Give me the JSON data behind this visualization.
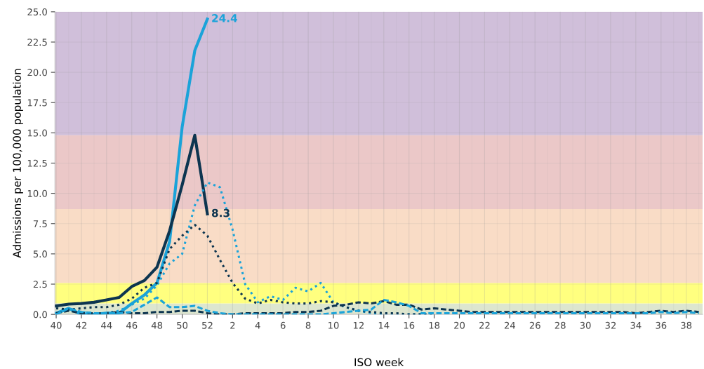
{
  "chart_data": {
    "type": "line",
    "xlabel": "ISO week",
    "ylabel": "Admissions per 100,000 population",
    "categories": [
      "40",
      null,
      "42",
      null,
      "44",
      null,
      "46",
      null,
      "48",
      null,
      "50",
      null,
      "52",
      null,
      "2",
      null,
      "4",
      null,
      "6",
      null,
      "8",
      null,
      "10",
      null,
      "12",
      null,
      "14",
      null,
      "16",
      null,
      "18",
      null,
      "20",
      null,
      "22",
      null,
      "24",
      null,
      "26",
      null,
      "28",
      null,
      "30",
      null,
      "32",
      null,
      "34",
      null,
      "36",
      null,
      "38",
      null
    ],
    "series": [
      {
        "color": "#1ba3d9",
        "line_style": "solid",
        "values": [
          0.1,
          0.5,
          0.0,
          0.0,
          0.1,
          0.1,
          0.9,
          1.6,
          2.6,
          6.0,
          15.5,
          21.8,
          24.4,
          null,
          null,
          null,
          null,
          null,
          null,
          null,
          null,
          null,
          null,
          null,
          null,
          null,
          null,
          null,
          null,
          null,
          null,
          null,
          null,
          null,
          null,
          null,
          null,
          null,
          null,
          null,
          null,
          null,
          null,
          null,
          null,
          null,
          null,
          null,
          null,
          null,
          null,
          null
        ]
      },
      {
        "color": "#0d3550",
        "line_style": "solid",
        "values": [
          0.7,
          0.85,
          0.9,
          1.0,
          1.2,
          1.4,
          2.3,
          2.8,
          3.9,
          6.9,
          10.7,
          14.8,
          8.3,
          null,
          null,
          null,
          null,
          null,
          null,
          null,
          null,
          null,
          null,
          null,
          null,
          null,
          null,
          null,
          null,
          null,
          null,
          null,
          null,
          null,
          null,
          null,
          null,
          null,
          null,
          null,
          null,
          null,
          null,
          null,
          null,
          null,
          null,
          null,
          null,
          null,
          null,
          null
        ]
      },
      {
        "color": "#1ba3d9",
        "line_style": "dotted",
        "values": [
          0.1,
          0.4,
          0.2,
          0.1,
          0.1,
          0.3,
          0.8,
          1.3,
          2.4,
          4.2,
          5.0,
          9.0,
          10.9,
          10.5,
          7.0,
          2.5,
          1.0,
          1.5,
          1.2,
          2.2,
          1.9,
          2.6,
          1.0,
          0.6,
          0.3,
          0.1,
          0.0,
          0.0,
          0.0,
          0.0,
          0.0,
          null,
          null,
          null,
          null,
          null,
          null,
          null,
          null,
          null,
          null,
          null,
          null,
          null,
          null,
          null,
          null,
          null,
          null,
          null,
          null,
          null
        ]
      },
      {
        "color": "#0d3550",
        "line_style": "dotted",
        "values": [
          0.5,
          0.4,
          0.5,
          0.6,
          0.6,
          0.8,
          1.3,
          2.2,
          2.6,
          5.4,
          6.5,
          7.4,
          6.5,
          4.5,
          2.6,
          1.3,
          0.9,
          1.2,
          1.0,
          0.9,
          0.9,
          1.1,
          1.0,
          0.6,
          0.3,
          0.2,
          0.1,
          0.1,
          0.0,
          0.0,
          0.0,
          null,
          null,
          null,
          null,
          null,
          null,
          null,
          null,
          null,
          null,
          null,
          null,
          null,
          null,
          null,
          null,
          null,
          null,
          null,
          null,
          null
        ]
      },
      {
        "color": "#0d3550",
        "line_style": "dashed",
        "values": [
          0.1,
          0.3,
          0.1,
          0.1,
          0.1,
          0.2,
          0.1,
          0.1,
          0.2,
          0.2,
          0.3,
          0.3,
          0.1,
          0.0,
          0.0,
          0.1,
          0.1,
          0.1,
          0.1,
          0.2,
          0.2,
          0.3,
          0.7,
          0.8,
          1.0,
          0.9,
          1.1,
          0.8,
          0.8,
          0.4,
          0.5,
          0.4,
          0.3,
          0.2,
          0.2,
          0.2,
          0.2,
          0.2,
          0.2,
          0.2,
          0.2,
          0.2,
          0.2,
          0.2,
          0.2,
          0.2,
          0.1,
          0.2,
          0.3,
          0.2,
          0.3,
          0.2
        ]
      },
      {
        "color": "#1ba3d9",
        "line_style": "dashed",
        "values": [
          0.0,
          0.5,
          0.2,
          0.1,
          0.1,
          0.1,
          0.2,
          0.8,
          1.4,
          0.6,
          0.6,
          0.7,
          0.3,
          0.1,
          0.0,
          0.0,
          0.0,
          0.0,
          0.0,
          0.0,
          0.0,
          0.0,
          0.1,
          0.2,
          0.3,
          0.4,
          1.2,
          1.0,
          0.7,
          0.1,
          0.1,
          0.1,
          0.1,
          0.1,
          0.1,
          0.1,
          0.1,
          0.1,
          0.1,
          0.1,
          0.1,
          0.1,
          0.1,
          0.1,
          0.1,
          0.1,
          0.1,
          0.1,
          0.2,
          0.1,
          0.2,
          0.1
        ]
      }
    ],
    "ylim": [
      0,
      25
    ],
    "yticks": [
      {
        "value": 0,
        "label": "0.0"
      },
      {
        "value": 2.5,
        "label": "2.5"
      },
      {
        "value": 5,
        "label": "5.0"
      },
      {
        "value": 7.5,
        "label": "7.5"
      },
      {
        "value": 10,
        "label": "10.0"
      },
      {
        "value": 12.5,
        "label": "12.5"
      },
      {
        "value": 15,
        "label": "15.0"
      },
      {
        "value": 17.5,
        "label": "17.5"
      },
      {
        "value": 20,
        "label": "20.0"
      },
      {
        "value": 22.5,
        "label": "22.5"
      },
      {
        "value": 25,
        "label": "25.0"
      }
    ],
    "bands": [
      {
        "axis": "y",
        "from": 0,
        "to": 0.9,
        "color": "#dde6cf"
      },
      {
        "axis": "y",
        "from": 0.9,
        "to": 2.6,
        "color": "#ffff7f"
      },
      {
        "axis": "y",
        "from": 2.6,
        "to": 8.7,
        "color": "#f9dcc6"
      },
      {
        "axis": "y",
        "from": 8.7,
        "to": 14.8,
        "color": "#ebc8c8"
      },
      {
        "axis": "y",
        "from": 14.8,
        "to": 25,
        "color": "#d0bfda"
      }
    ],
    "annotations": [
      {
        "text": "24.4",
        "x": "52",
        "y": 24.4
      },
      {
        "text": "8.3",
        "x": "52",
        "y": 8.3
      }
    ],
    "grid": true,
    "legend": false
  }
}
